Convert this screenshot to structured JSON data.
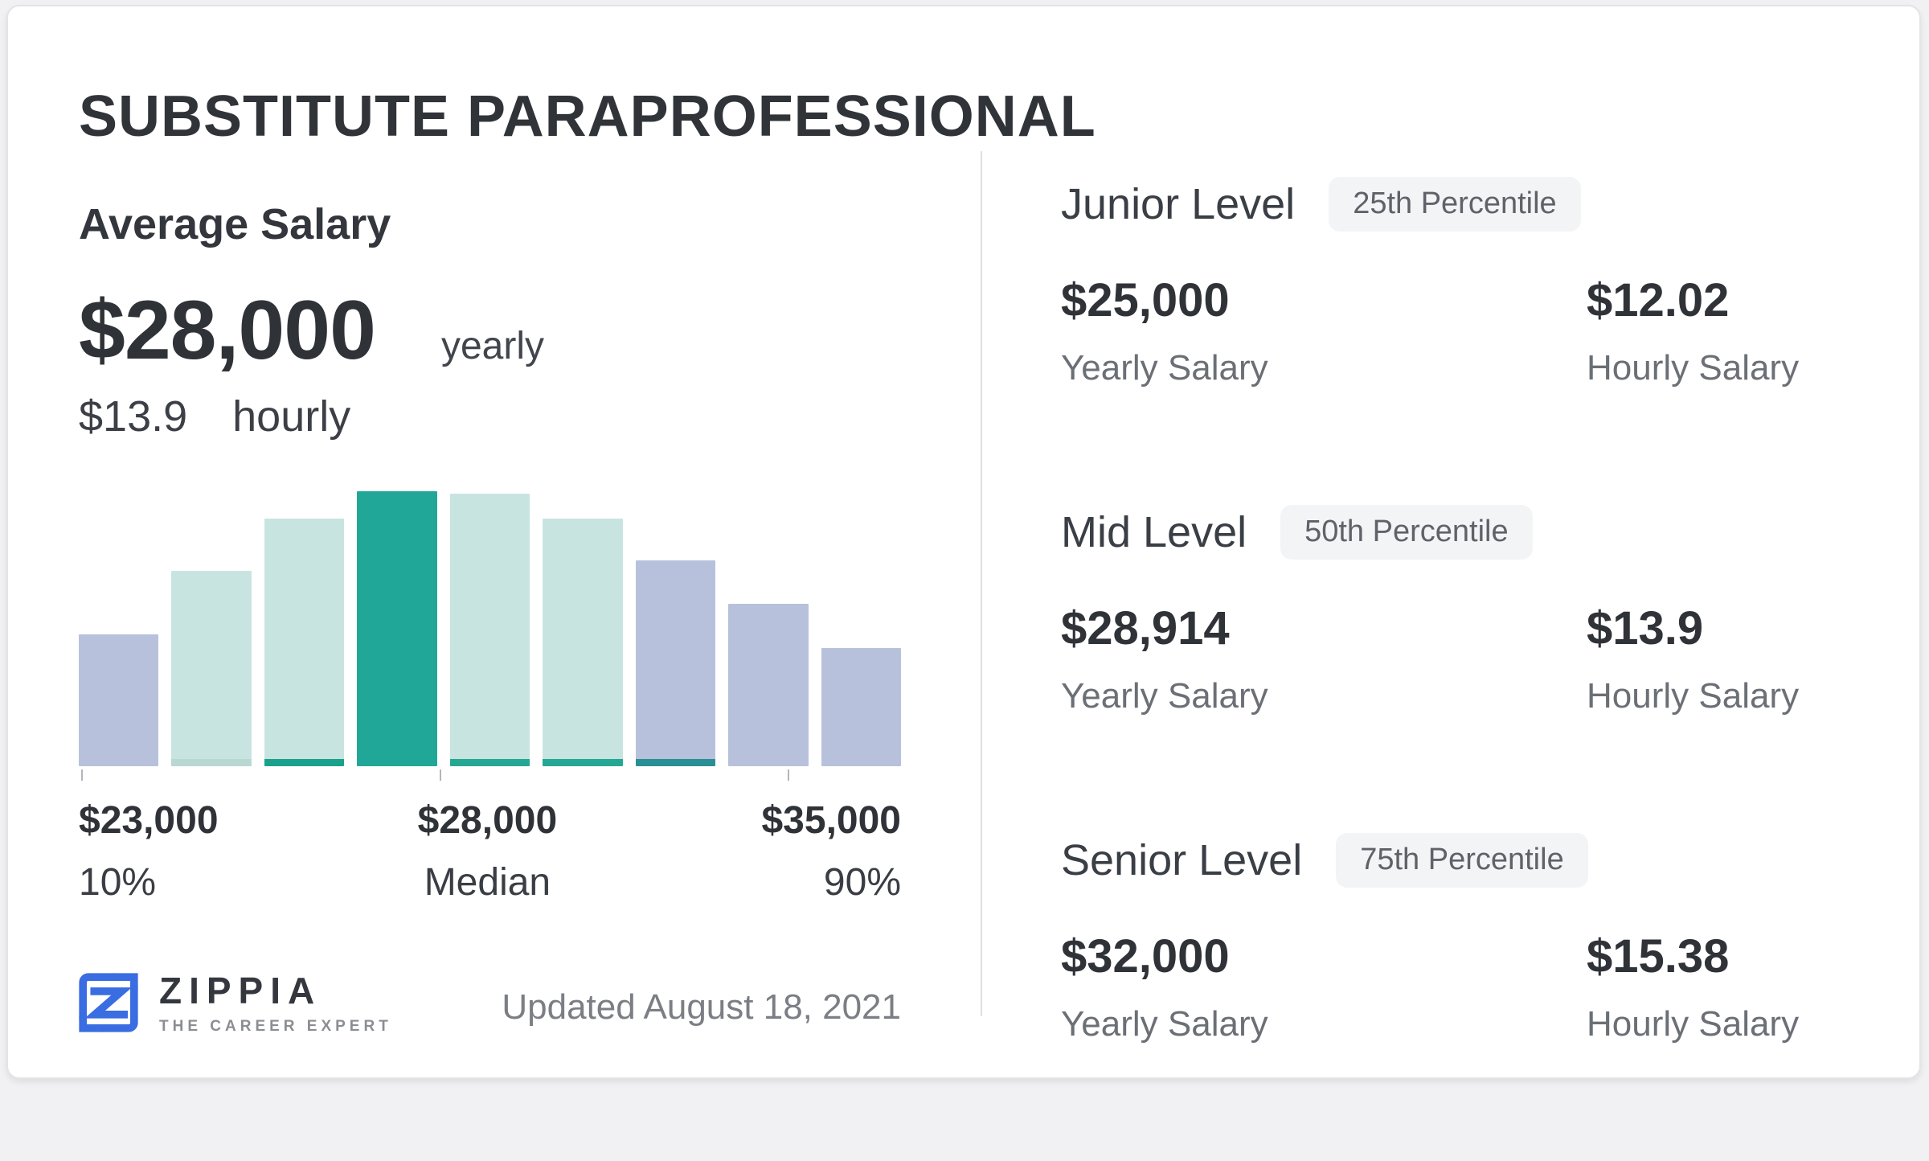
{
  "header": {
    "title": "SUBSTITUTE PARAPROFESSIONAL"
  },
  "average": {
    "label": "Average Salary",
    "yearly_value": "$28,000",
    "yearly_unit": "yearly",
    "hourly_value": "$13.9",
    "hourly_unit": "hourly"
  },
  "chart_data": {
    "type": "bar",
    "title": "Salary distribution histogram",
    "categories": [
      "b1",
      "b2",
      "b3",
      "b4",
      "b5",
      "b6",
      "b7",
      "b8",
      "b9"
    ],
    "values": [
      48,
      71,
      90,
      100,
      99,
      90,
      75,
      59,
      43
    ],
    "value_unit": "relative height percent of tallest bar",
    "highlight_index": 3,
    "bars": [
      {
        "height_pct": 48,
        "color": "#b8c1dc",
        "accent": null
      },
      {
        "height_pct": 71,
        "color": "#c8e4e0",
        "accent": "#b9d8d2"
      },
      {
        "height_pct": 90,
        "color": "#c8e4e0",
        "accent": "#1aa18c"
      },
      {
        "height_pct": 100,
        "color": "#21a797",
        "accent": null,
        "highlight": true
      },
      {
        "height_pct": 99,
        "color": "#c8e4e0",
        "accent": "#25a793"
      },
      {
        "height_pct": 90,
        "color": "#c8e4e0",
        "accent": "#25a793"
      },
      {
        "height_pct": 75,
        "color": "#b8c1dc",
        "accent": "#2a8f94"
      },
      {
        "height_pct": 59,
        "color": "#b8c1dc",
        "accent": null
      },
      {
        "height_pct": 43,
        "color": "#b8c1dc",
        "accent": null
      }
    ],
    "tick_positions_pct": [
      0.3,
      43.9,
      86.2
    ],
    "axis_labels": [
      {
        "value": "$23,000",
        "caption": "10%"
      },
      {
        "value": "$28,000",
        "caption": "Median"
      },
      {
        "value": "$35,000",
        "caption": "90%"
      }
    ],
    "xlabel": "",
    "ylabel": "",
    "legend": "none",
    "grid": false
  },
  "levels": [
    {
      "title": "Junior Level",
      "badge": "25th Percentile",
      "yearly": "$25,000",
      "yearly_label": "Yearly Salary",
      "hourly": "$12.02",
      "hourly_label": "Hourly Salary"
    },
    {
      "title": "Mid Level",
      "badge": "50th Percentile",
      "yearly": "$28,914",
      "yearly_label": "Yearly Salary",
      "hourly": "$13.9",
      "hourly_label": "Hourly Salary"
    },
    {
      "title": "Senior Level",
      "badge": "75th Percentile",
      "yearly": "$32,000",
      "yearly_label": "Yearly Salary",
      "hourly": "$15.38",
      "hourly_label": "Hourly Salary"
    }
  ],
  "footer": {
    "logo_name": "ZIPPIA",
    "logo_tagline": "THE CAREER EXPERT",
    "updated": "Updated August 18, 2021"
  },
  "colors": {
    "accent_teal": "#21a797",
    "light_teal": "#c8e4e0",
    "lavender": "#b8c1dc",
    "brand_blue": "#3a6ce2",
    "text_dark": "#2f3338",
    "text_gray": "#6b6f76",
    "badge_bg": "#f3f4f6",
    "divider": "#dee0e3"
  }
}
